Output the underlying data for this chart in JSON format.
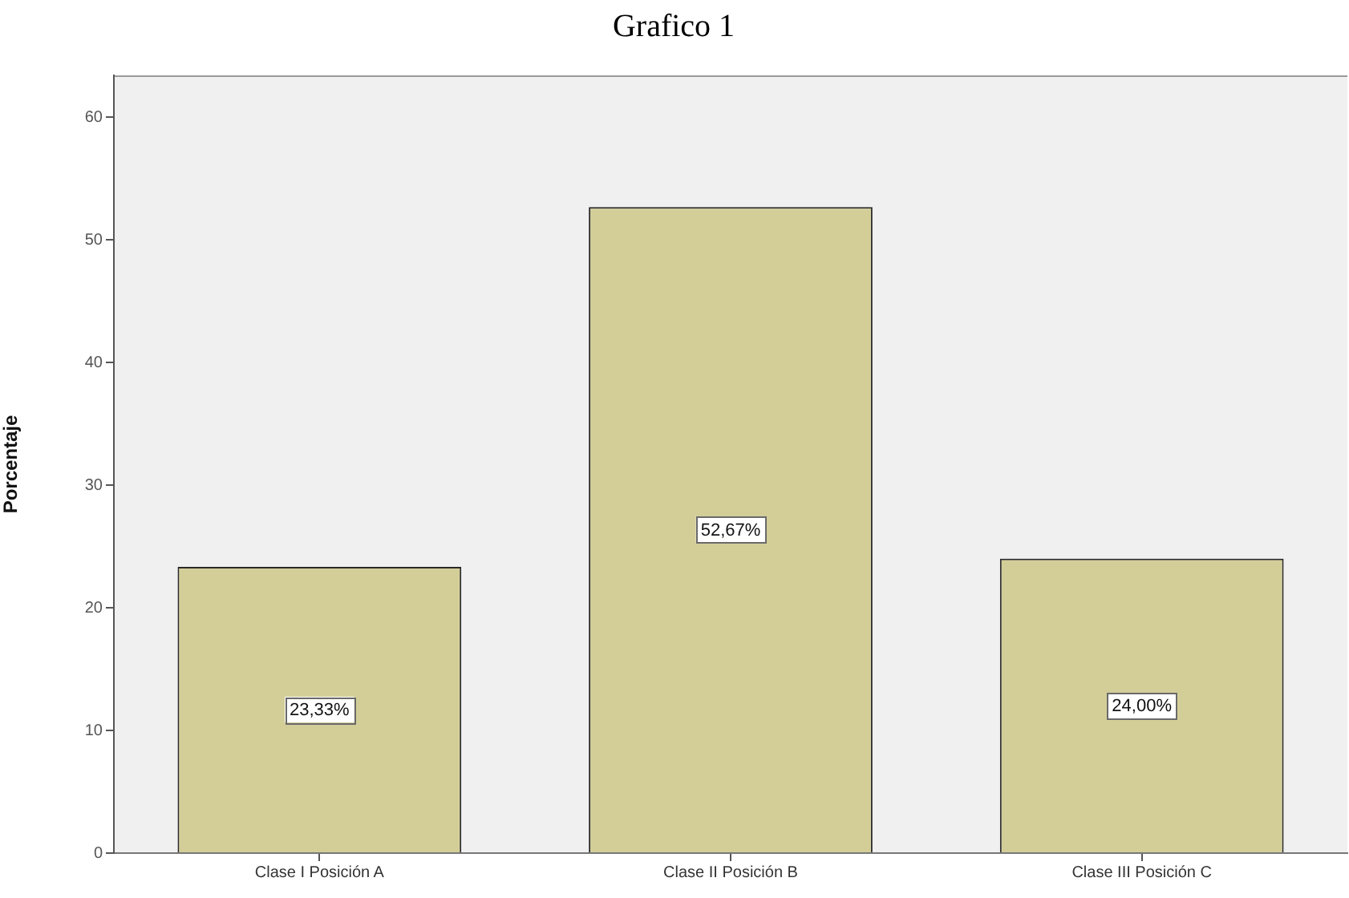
{
  "chart_data": {
    "type": "bar",
    "title": "Grafico 1",
    "ylabel": "Porcentaje",
    "categories": [
      "Clase I Posición A",
      "Clase II Posición B",
      "Clase III Posición C"
    ],
    "values": [
      23.33,
      52.67,
      24.0
    ],
    "color": "#d3ce98",
    "value_labels": [
      "23,33%",
      "52,67%",
      "24,00%"
    ],
    "ylim": [
      0,
      63.4
    ],
    "yticks": [
      0,
      10,
      20,
      30,
      40,
      50,
      60
    ],
    "grid": false,
    "legend": false
  }
}
